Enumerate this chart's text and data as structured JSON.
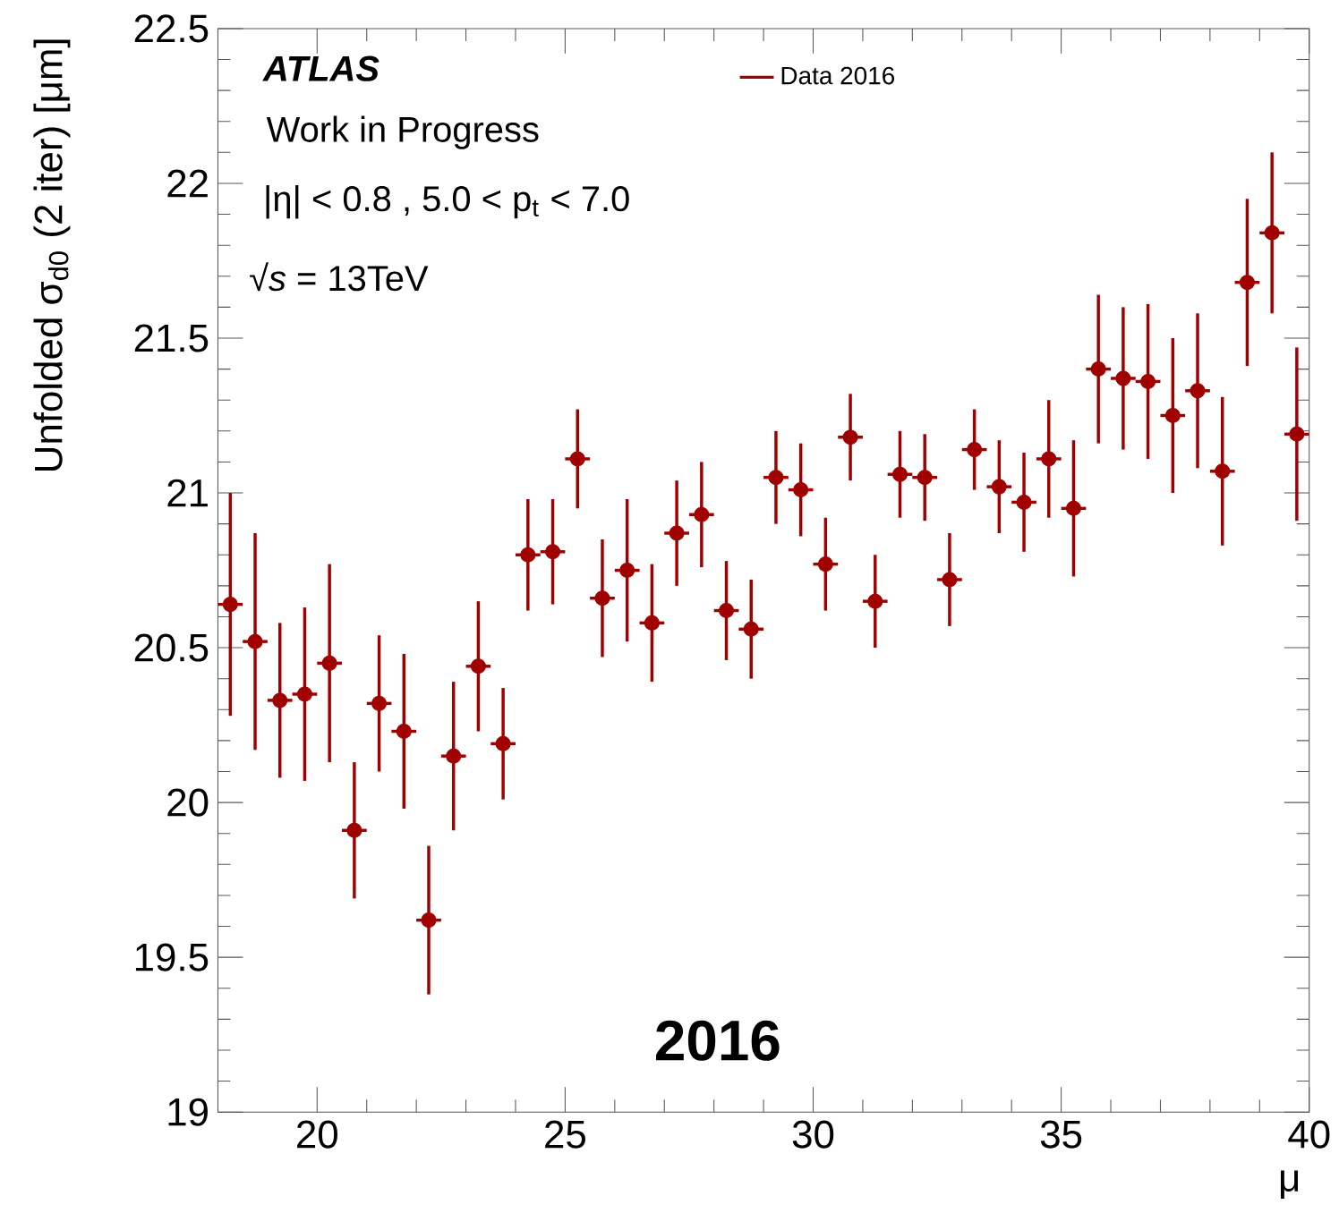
{
  "chart_data": {
    "type": "scatter",
    "xlabel": "μ",
    "ylabel": "Unfolded σ$_{d0}$ (2 iter) [μm]",
    "annotations": [
      "ATLAS",
      "Work in Progress",
      "|η| < 0.8 , 5.0 < p$_{t}$ < 7.0",
      "√*s* = 13TeV",
      "2016"
    ],
    "x": [
      18.25,
      18.75,
      19.25,
      19.75,
      20.25,
      20.75,
      21.25,
      21.75,
      22.25,
      22.75,
      23.25,
      23.75,
      24.25,
      24.75,
      25.25,
      25.75,
      26.25,
      26.75,
      27.25,
      27.75,
      28.25,
      28.75,
      29.25,
      29.75,
      30.25,
      30.75,
      31.25,
      31.75,
      32.25,
      32.75,
      33.25,
      33.75,
      34.25,
      34.75,
      35.25,
      35.75,
      36.25,
      36.75,
      37.25,
      37.75,
      38.25,
      38.75,
      39.25,
      39.75
    ],
    "series": [
      {
        "name": "Data 2016",
        "color": "#a00000",
        "values": [
          20.64,
          20.52,
          20.33,
          20.35,
          20.45,
          19.91,
          20.32,
          20.23,
          19.62,
          20.15,
          20.44,
          20.19,
          20.8,
          20.81,
          21.11,
          20.66,
          20.75,
          20.58,
          20.87,
          20.93,
          20.62,
          20.56,
          21.05,
          21.01,
          20.77,
          21.18,
          20.65,
          21.06,
          21.05,
          20.72,
          21.14,
          21.02,
          20.97,
          21.11,
          20.95,
          21.4,
          21.37,
          21.36,
          21.25,
          21.33,
          21.07,
          21.68,
          21.84,
          21.19
        ],
        "errors": [
          0.36,
          0.35,
          0.25,
          0.28,
          0.32,
          0.22,
          0.22,
          0.25,
          0.24,
          0.24,
          0.21,
          0.18,
          0.18,
          0.17,
          0.16,
          0.19,
          0.23,
          0.19,
          0.17,
          0.17,
          0.16,
          0.16,
          0.15,
          0.15,
          0.15,
          0.14,
          0.15,
          0.14,
          0.14,
          0.15,
          0.13,
          0.15,
          0.16,
          0.19,
          0.22,
          0.24,
          0.23,
          0.25,
          0.25,
          0.25,
          0.24,
          0.27,
          0.26,
          0.28
        ],
        "xerrors": [
          0.25,
          0.25,
          0.25,
          0.25,
          0.25,
          0.25,
          0.25,
          0.25,
          0.25,
          0.25,
          0.25,
          0.25,
          0.25,
          0.25,
          0.25,
          0.25,
          0.25,
          0.25,
          0.25,
          0.25,
          0.25,
          0.25,
          0.25,
          0.25,
          0.25,
          0.25,
          0.25,
          0.25,
          0.25,
          0.25,
          0.25,
          0.25,
          0.25,
          0.25,
          0.25,
          0.25,
          0.25,
          0.25,
          0.25,
          0.25,
          0.25,
          0.25,
          0.25,
          0.25
        ]
      }
    ],
    "xlim": [
      18,
      40
    ],
    "ylim": [
      19,
      22.5
    ],
    "xticks": [
      20,
      25,
      30,
      35,
      40
    ],
    "yticks": [
      19,
      19.5,
      20,
      20.5,
      21,
      21.5,
      22,
      22.5
    ],
    "marker": "circle",
    "legend": "top"
  }
}
